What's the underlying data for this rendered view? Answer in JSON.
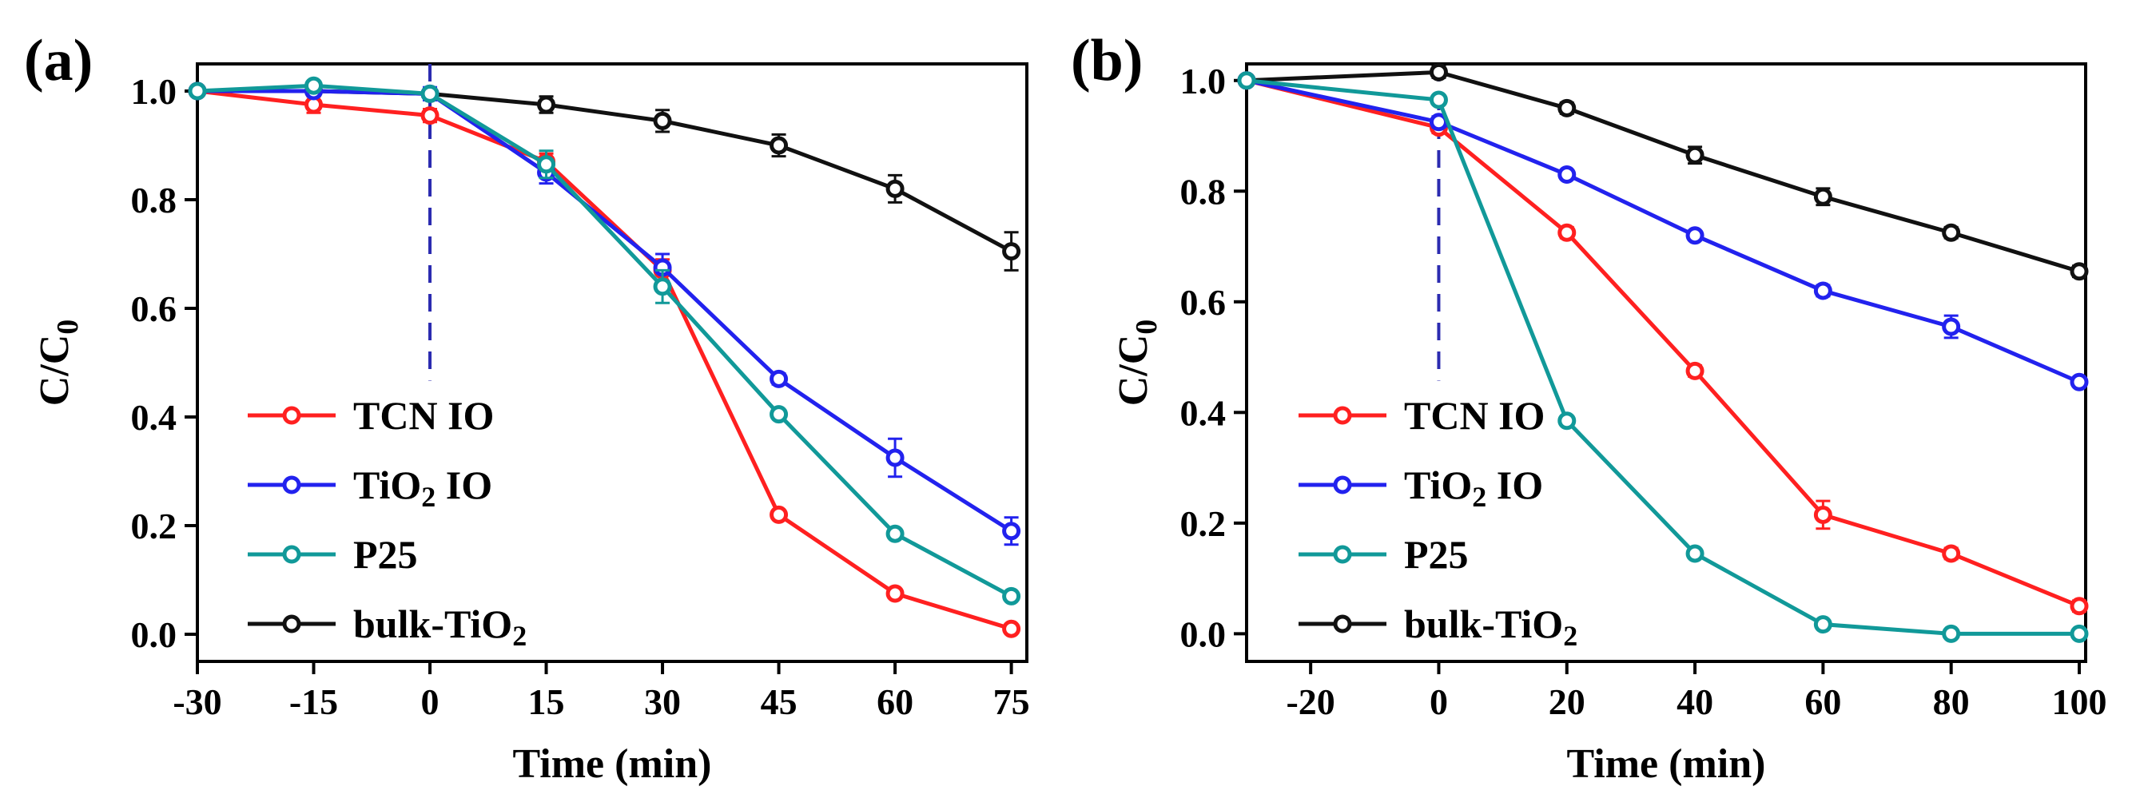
{
  "chart_data": [
    {
      "type": "line",
      "panel_label": "(a)",
      "xlabel": "Time (min)",
      "ylabel": "C/C0",
      "ylabel_main": "C/C",
      "ylabel_sub": "0",
      "xlim": [
        -30,
        77
      ],
      "ylim": [
        -0.05,
        1.05
      ],
      "xticks": [
        -30,
        -15,
        0,
        15,
        30,
        45,
        60,
        75
      ],
      "xtick_labels": [
        "-30",
        "-15",
        "0",
        "15",
        "30",
        "45",
        "60",
        "75"
      ],
      "yticks": [
        0.0,
        0.2,
        0.4,
        0.6,
        0.8,
        1.0
      ],
      "ytick_labels": [
        "0.0",
        "0.2",
        "0.4",
        "0.6",
        "0.8",
        "1.0"
      ],
      "marker_x": 0,
      "legend_position": "bottom-left",
      "series": [
        {
          "name": "TCN IO",
          "name_main": "TCN IO",
          "name_sub": "",
          "name_suffix": "",
          "color": "#ff2020",
          "x": [
            -30,
            -15,
            0,
            15,
            30,
            45,
            60,
            75
          ],
          "values": [
            1.0,
            0.975,
            0.955,
            0.87,
            0.67,
            0.22,
            0.075,
            0.01
          ],
          "errors": [
            0,
            0.015,
            0.012,
            0.015,
            0.02,
            0,
            0,
            0
          ]
        },
        {
          "name": "TiO2 IO",
          "name_main": "TiO",
          "name_sub": "2",
          "name_suffix": " IO",
          "color": "#2222ee",
          "x": [
            -30,
            -15,
            0,
            15,
            30,
            45,
            60,
            75
          ],
          "values": [
            1.0,
            1.0,
            0.995,
            0.85,
            0.675,
            0.47,
            0.325,
            0.19
          ],
          "errors": [
            0,
            0,
            0.012,
            0.02,
            0.025,
            0.01,
            0.035,
            0.025
          ]
        },
        {
          "name": "P25",
          "name_main": "P25",
          "name_sub": "",
          "name_suffix": "",
          "color": "#119999",
          "x": [
            -30,
            -15,
            0,
            15,
            30,
            45,
            60,
            75
          ],
          "values": [
            1.0,
            1.01,
            0.995,
            0.865,
            0.64,
            0.405,
            0.185,
            0.07
          ],
          "errors": [
            0,
            0.008,
            0,
            0.025,
            0.03,
            0,
            0,
            0
          ]
        },
        {
          "name": "bulk-TiO2",
          "name_main": "bulk-TiO",
          "name_sub": "2",
          "name_suffix": "",
          "color": "#111111",
          "x": [
            -30,
            -15,
            0,
            15,
            30,
            45,
            60,
            75
          ],
          "values": [
            1.0,
            1.0,
            0.995,
            0.975,
            0.945,
            0.9,
            0.82,
            0.705
          ],
          "errors": [
            0,
            0,
            0,
            0.015,
            0.02,
            0.02,
            0.025,
            0.035
          ]
        }
      ]
    },
    {
      "type": "line",
      "panel_label": "(b)",
      "xlabel": "Time (min)",
      "ylabel": "C/C0",
      "ylabel_main": "C/C",
      "ylabel_sub": "0",
      "xlim": [
        -30,
        101
      ],
      "ylim": [
        -0.05,
        1.03
      ],
      "xticks": [
        -20,
        0,
        20,
        40,
        60,
        80,
        100
      ],
      "xtick_labels": [
        "-20",
        "0",
        "20",
        "40",
        "60",
        "80",
        "100"
      ],
      "yticks": [
        0.0,
        0.2,
        0.4,
        0.6,
        0.8,
        1.0
      ],
      "ytick_labels": [
        "0.0",
        "0.2",
        "0.4",
        "0.6",
        "0.8",
        "1.0"
      ],
      "marker_x": 0,
      "legend_position": "bottom-left",
      "series": [
        {
          "name": "TCN IO",
          "name_main": "TCN IO",
          "name_sub": "",
          "name_suffix": "",
          "color": "#ff2020",
          "x": [
            -30,
            0,
            20,
            40,
            60,
            80,
            100
          ],
          "values": [
            1.0,
            0.915,
            0.725,
            0.475,
            0.215,
            0.145,
            0.05
          ],
          "errors": [
            0,
            0.01,
            0.01,
            0.01,
            0.025,
            0.01,
            0.01
          ]
        },
        {
          "name": "TiO2 IO",
          "name_main": "TiO",
          "name_sub": "2",
          "name_suffix": " IO",
          "color": "#2222ee",
          "x": [
            -30,
            0,
            20,
            40,
            60,
            80,
            100
          ],
          "values": [
            1.0,
            0.925,
            0.83,
            0.72,
            0.62,
            0.555,
            0.455
          ],
          "errors": [
            0,
            0.01,
            0,
            0,
            0.01,
            0.02,
            0
          ]
        },
        {
          "name": "P25",
          "name_main": "P25",
          "name_sub": "",
          "name_suffix": "",
          "color": "#119999",
          "x": [
            -30,
            0,
            20,
            40,
            60,
            80,
            100
          ],
          "values": [
            1.0,
            0.965,
            0.385,
            0.145,
            0.017,
            0.0,
            0.0
          ],
          "errors": [
            0,
            0,
            0,
            0,
            0,
            0,
            0
          ]
        },
        {
          "name": "bulk-TiO2",
          "name_main": "bulk-TiO",
          "name_sub": "2",
          "name_suffix": "",
          "color": "#111111",
          "x": [
            -30,
            0,
            20,
            40,
            60,
            80,
            100
          ],
          "values": [
            1.0,
            1.015,
            0.95,
            0.865,
            0.79,
            0.725,
            0.655
          ],
          "errors": [
            0,
            0.01,
            0.01,
            0.015,
            0.015,
            0.01,
            0.01
          ]
        }
      ]
    }
  ]
}
